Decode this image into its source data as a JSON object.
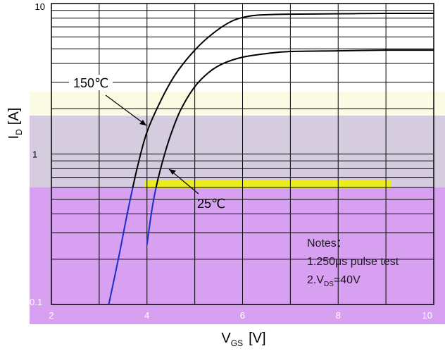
{
  "chart_data": {
    "type": "line",
    "xlabel": {
      "main": "V",
      "sub": "GS",
      "unit": "[V]"
    },
    "ylabel": {
      "main": "I",
      "sub": "D",
      "unit": "[A]"
    },
    "xlim": [
      2,
      10
    ],
    "ylim": [
      0.1,
      10
    ],
    "yscale": "log",
    "x_ticks": [
      "2",
      "4",
      "6",
      "8",
      "10"
    ],
    "y_ticks": [
      {
        "value": 10,
        "label": "10"
      },
      {
        "value": 1,
        "label": "1"
      },
      {
        "value": 0.1,
        "label": "0.1"
      }
    ],
    "grid": true,
    "series": [
      {
        "name": "150℃",
        "x": [
          3.2,
          3.4,
          3.6,
          3.8,
          4.0,
          4.3,
          4.6,
          5.0,
          5.4,
          5.8,
          6.2,
          6.6,
          7.0,
          8.0,
          9.0,
          10.0
        ],
        "y": [
          0.1,
          0.2,
          0.42,
          0.82,
          1.4,
          2.3,
          3.4,
          4.9,
          6.4,
          7.7,
          8.3,
          8.45,
          8.5,
          8.55,
          8.6,
          8.6
        ]
      },
      {
        "name": "25℃",
        "x": [
          4.0,
          4.1,
          4.2,
          4.35,
          4.5,
          4.7,
          5.0,
          5.3,
          5.6,
          6.0,
          6.5,
          7.0,
          8.0,
          9.0,
          10.0
        ],
        "y": [
          0.25,
          0.42,
          0.62,
          0.95,
          1.35,
          1.95,
          2.8,
          3.5,
          4.0,
          4.4,
          4.65,
          4.8,
          4.85,
          4.9,
          4.9
        ]
      }
    ],
    "annotations": [
      {
        "text": "150℃",
        "series": "150℃"
      },
      {
        "text": "25℃",
        "series": "25℃"
      }
    ],
    "notes": {
      "title": "Notes：",
      "line1": "1.250μs pulse test",
      "line2_prefix": "2.V",
      "line2_sub": "DS",
      "line2_suffix": "=40V"
    }
  },
  "colors": {
    "band_top": "#fbfae3",
    "band_mid": "#d5cce0",
    "band_bottom": "#d7a0f1",
    "curve_upper": "#000000",
    "curve_lower": "#1a2ec9",
    "grid": "#000000",
    "highlight_strip": "#ecec22"
  }
}
